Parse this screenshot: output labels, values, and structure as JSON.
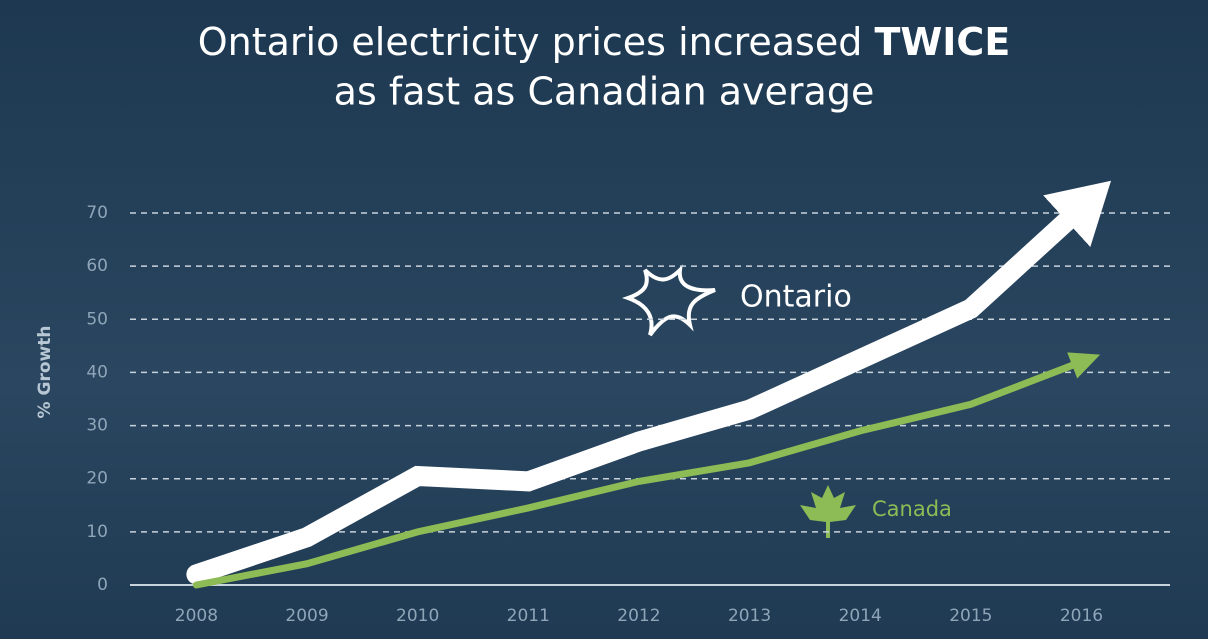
{
  "chart_data": {
    "type": "line",
    "title": {
      "line1": "Ontario electricity prices increased",
      "emphasis": "TWICE",
      "line2": "as fast as Canadian average"
    },
    "y_label": "% Growth",
    "x": [
      2008,
      2009,
      2010,
      2011,
      2012,
      2013,
      2014,
      2015,
      2016
    ],
    "xlim": [
      2007.4,
      2016.8
    ],
    "xticks": [
      2008,
      2009,
      2010,
      2011,
      2012,
      2013,
      2014,
      2015,
      2016
    ],
    "ylim": [
      0,
      70
    ],
    "yticks": [
      0,
      10,
      20,
      30,
      40,
      50,
      60,
      70
    ],
    "grid": true,
    "series": [
      {
        "name": "Ontario",
        "color": "#ffffff",
        "values": [
          2,
          9,
          20.5,
          19.5,
          27,
          33,
          42.5,
          52,
          71
        ]
      },
      {
        "name": "Canada",
        "color": "#8dbb55",
        "values": [
          0,
          4,
          10,
          14.5,
          19.5,
          23,
          29,
          34,
          42
        ]
      }
    ]
  }
}
